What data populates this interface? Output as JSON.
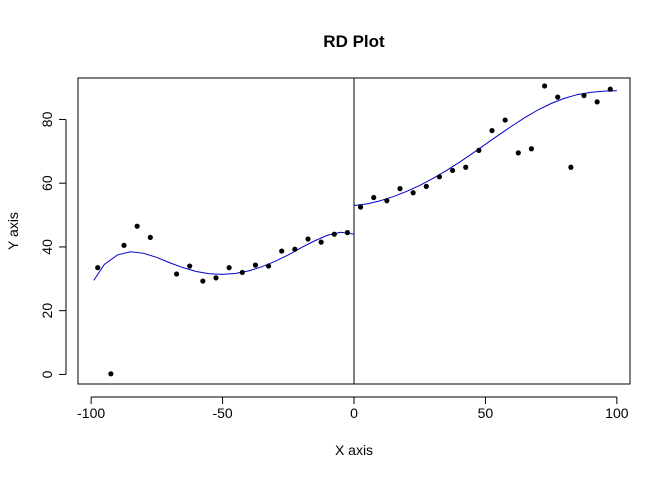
{
  "chart_data": {
    "type": "scatter",
    "title": "RD Plot",
    "xlabel": "X axis",
    "ylabel": "Y axis",
    "xlim": [
      -105,
      105
    ],
    "ylim": [
      -3,
      93
    ],
    "x_ticks": [
      -100,
      -50,
      0,
      50,
      100
    ],
    "x_tick_labels": [
      "-100",
      "-50",
      "0",
      "50",
      "100"
    ],
    "y_ticks": [
      0,
      20,
      40,
      60,
      80
    ],
    "y_tick_labels": [
      "0",
      "20",
      "40",
      "60",
      "80"
    ],
    "grid": false,
    "cutoff": 0,
    "colors": {
      "points": "#000000",
      "fit": "#0000cc",
      "cutoff_line": "#000000",
      "frame": "#000000"
    },
    "series": [
      {
        "type": "scatter",
        "x": [
          -97.5,
          -92.5,
          -87.5,
          -82.5,
          -77.5,
          -67.5,
          -62.5,
          -57.5,
          -52.5,
          -47.5,
          -42.5,
          -37.5,
          -32.5,
          -27.5,
          -22.5,
          -17.5,
          -12.5,
          -7.5,
          -2.5,
          2.5,
          7.5,
          12.5,
          17.5,
          22.5,
          27.5,
          32.5,
          37.5,
          42.5,
          47.5,
          52.5,
          57.5,
          62.5,
          67.5,
          72.5,
          77.5,
          82.5,
          87.5,
          92.5,
          97.5
        ],
        "y": [
          33.5,
          0.2,
          40.5,
          46.5,
          43.0,
          31.5,
          34.0,
          29.3,
          30.3,
          33.5,
          32.0,
          34.3,
          34.0,
          38.7,
          39.3,
          42.5,
          41.5,
          44.0,
          44.5,
          52.5,
          55.5,
          54.5,
          58.3,
          57.0,
          59.0,
          62.0,
          64.0,
          65.0,
          70.3,
          76.5,
          79.8,
          69.5,
          70.8,
          90.5,
          87.0,
          65.0,
          87.5,
          85.5,
          89.5
        ]
      },
      {
        "type": "line",
        "x": [
          -99,
          -95,
          -90,
          -85,
          -80,
          -75,
          -70,
          -65,
          -60,
          -55,
          -50,
          -45,
          -40,
          -35,
          -30,
          -25,
          -20,
          -15,
          -10,
          -5,
          0
        ],
        "y": [
          29.5,
          34.5,
          37.5,
          38.5,
          38.0,
          36.7,
          35.0,
          33.5,
          32.3,
          31.6,
          31.4,
          31.7,
          32.5,
          33.8,
          35.5,
          37.5,
          39.8,
          41.9,
          43.7,
          44.6,
          44.0
        ]
      },
      {
        "type": "line",
        "x": [
          0,
          5,
          10,
          15,
          20,
          25,
          30,
          35,
          40,
          45,
          50,
          55,
          60,
          65,
          70,
          75,
          80,
          85,
          90,
          95,
          100
        ],
        "y": [
          53.0,
          53.5,
          54.5,
          55.8,
          57.4,
          59.3,
          61.5,
          63.9,
          66.5,
          69.3,
          72.2,
          75.1,
          77.9,
          80.6,
          83.0,
          85.0,
          86.6,
          87.8,
          88.5,
          88.9,
          89.0
        ]
      }
    ]
  }
}
